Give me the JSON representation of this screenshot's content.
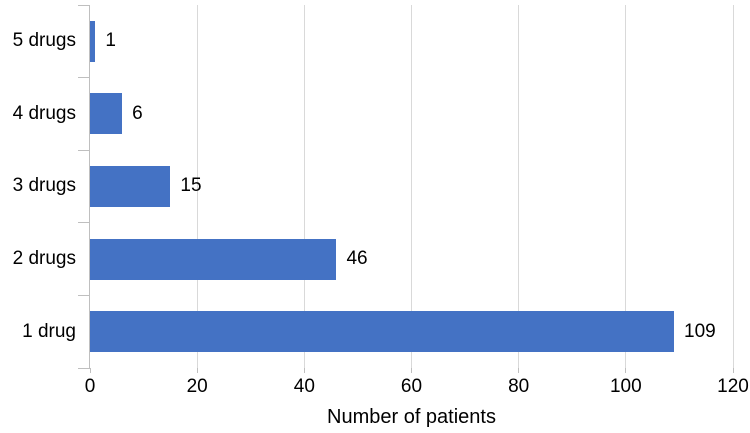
{
  "chart_data": {
    "type": "bar",
    "orientation": "horizontal",
    "title": "",
    "xlabel": "Number of patients",
    "ylabel": "",
    "categories": [
      "5 drugs",
      "4 drugs",
      "3 drugs",
      "2 drugs",
      "1 drug"
    ],
    "values": [
      1,
      6,
      15,
      46,
      109
    ],
    "value_labels": [
      "1",
      "6",
      "15",
      "46",
      "109"
    ],
    "xlim": [
      0,
      120
    ],
    "xticks": [
      0,
      20,
      40,
      60,
      80,
      100,
      120
    ],
    "grid": "vertical-only",
    "legend": "none",
    "colors": {
      "bar": "#4472C4",
      "gridline": "#D9D9D9",
      "axis": "#BFBFBF",
      "text": "#000000",
      "background": "#FFFFFF"
    }
  }
}
